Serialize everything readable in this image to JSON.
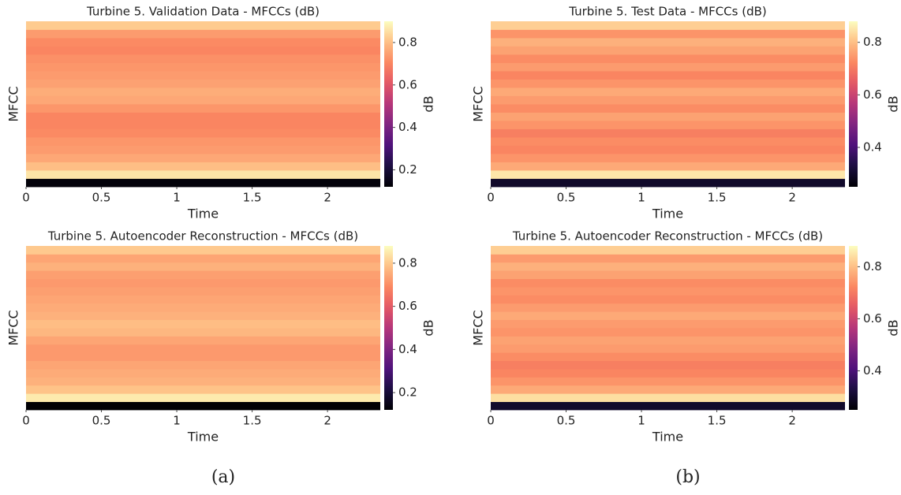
{
  "captions": [
    "(a)",
    "(b)"
  ],
  "chart_data": [
    {
      "type": "heatmap",
      "title": "Turbine 5. Validation Data - MFCCs (dB)",
      "xlabel": "Time",
      "ylabel": "MFCC",
      "zlabel": "dB",
      "colormap": "magma",
      "xlim": [
        0,
        2.35
      ],
      "xticks": [
        0,
        0.5,
        1,
        1.5,
        2
      ],
      "zlim": [
        0.12,
        0.9
      ],
      "zticks": [
        0.2,
        0.4,
        0.6,
        0.8
      ],
      "values": [
        0.13,
        0.86,
        0.8,
        0.76,
        0.74,
        0.73,
        0.71,
        0.7,
        0.7,
        0.73,
        0.76,
        0.77,
        0.75,
        0.74,
        0.73,
        0.72,
        0.7,
        0.71,
        0.74,
        0.82
      ]
    },
    {
      "type": "heatmap",
      "title": "Turbine 5. Test Data - MFCCs (dB)",
      "xlabel": "Time",
      "ylabel": "MFCC",
      "zlabel": "dB",
      "colormap": "magma",
      "xlim": [
        0,
        2.35
      ],
      "xticks": [
        0,
        0.5,
        1,
        1.5,
        2
      ],
      "zlim": [
        0.25,
        0.88
      ],
      "zticks": [
        0.4,
        0.6,
        0.8
      ],
      "values": [
        0.3,
        0.85,
        0.77,
        0.74,
        0.72,
        0.73,
        0.71,
        0.74,
        0.76,
        0.73,
        0.75,
        0.77,
        0.74,
        0.72,
        0.75,
        0.73,
        0.76,
        0.78,
        0.74,
        0.82
      ]
    },
    {
      "type": "heatmap",
      "title": "Turbine 5. Autoencoder Reconstruction - MFCCs (dB)",
      "xlabel": "Time",
      "ylabel": "MFCC",
      "zlabel": "dB",
      "colormap": "magma",
      "xlim": [
        0,
        2.35
      ],
      "xticks": [
        0,
        0.5,
        1,
        1.5,
        2
      ],
      "zlim": [
        0.12,
        0.88
      ],
      "zticks": [
        0.2,
        0.4,
        0.6,
        0.8
      ],
      "values": [
        0.12,
        0.85,
        0.79,
        0.76,
        0.75,
        0.74,
        0.72,
        0.72,
        0.74,
        0.77,
        0.78,
        0.76,
        0.75,
        0.74,
        0.73,
        0.72,
        0.73,
        0.76,
        0.74,
        0.8
      ]
    },
    {
      "type": "heatmap",
      "title": "Turbine 5. Autoencoder Reconstruction - MFCCs (dB)",
      "xlabel": "Time",
      "ylabel": "MFCC",
      "zlabel": "dB",
      "colormap": "magma",
      "xlim": [
        0,
        2.35
      ],
      "xticks": [
        0,
        0.5,
        1,
        1.5,
        2
      ],
      "zlim": [
        0.25,
        0.88
      ],
      "zticks": [
        0.4,
        0.6,
        0.8
      ],
      "values": [
        0.3,
        0.84,
        0.77,
        0.74,
        0.72,
        0.71,
        0.73,
        0.75,
        0.76,
        0.74,
        0.75,
        0.77,
        0.75,
        0.73,
        0.74,
        0.73,
        0.76,
        0.78,
        0.75,
        0.82
      ]
    }
  ]
}
